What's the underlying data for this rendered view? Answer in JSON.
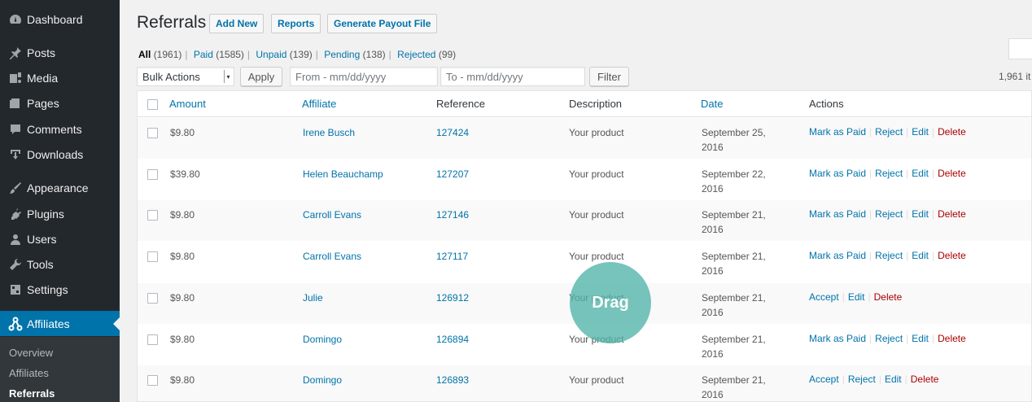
{
  "sidebar": {
    "items": [
      {
        "label": "Dashboard",
        "icon": "dashboard-icon"
      },
      {
        "label": "Posts",
        "icon": "pin-icon"
      },
      {
        "label": "Media",
        "icon": "media-icon"
      },
      {
        "label": "Pages",
        "icon": "pages-icon"
      },
      {
        "label": "Comments",
        "icon": "comments-icon"
      },
      {
        "label": "Downloads",
        "icon": "download-icon"
      },
      {
        "label": "Appearance",
        "icon": "brush-icon"
      },
      {
        "label": "Plugins",
        "icon": "plugin-icon"
      },
      {
        "label": "Users",
        "icon": "users-icon"
      },
      {
        "label": "Tools",
        "icon": "wrench-icon"
      },
      {
        "label": "Settings",
        "icon": "settings-icon"
      },
      {
        "label": "Affiliates",
        "icon": "affiliates-icon",
        "active": true
      }
    ],
    "submenu": [
      "Overview",
      "Affiliates",
      "Referrals"
    ]
  },
  "header": {
    "title": "Referrals",
    "buttons": [
      "Add New",
      "Reports",
      "Generate Payout File"
    ]
  },
  "views": [
    {
      "label": "All",
      "count": "(1961)"
    },
    {
      "label": "Paid",
      "count": "(1585)"
    },
    {
      "label": "Unpaid",
      "count": "(139)"
    },
    {
      "label": "Pending",
      "count": "(138)"
    },
    {
      "label": "Rejected",
      "count": "(99)"
    }
  ],
  "toolbar": {
    "bulk_actions": "Bulk Actions",
    "apply": "Apply",
    "from_placeholder": "From - mm/dd/yyyy",
    "to_placeholder": "To - mm/dd/yyyy",
    "filter": "Filter",
    "items_count": "1,961 it"
  },
  "table": {
    "columns": [
      "Amount",
      "Affiliate",
      "Reference",
      "Description",
      "Date",
      "Actions"
    ],
    "rows": [
      {
        "amount": "$9.80",
        "affiliate": "Irene Busch",
        "reference": "127424",
        "description": "Your product",
        "date1": "September 25,",
        "date2": "2016",
        "actions": [
          "Mark as Paid",
          "Reject",
          "Edit",
          "Delete"
        ]
      },
      {
        "amount": "$39.80",
        "affiliate": "Helen Beauchamp",
        "reference": "127207",
        "description": "Your product",
        "date1": "September 22,",
        "date2": "2016",
        "actions": [
          "Mark as Paid",
          "Reject",
          "Edit",
          "Delete"
        ]
      },
      {
        "amount": "$9.80",
        "affiliate": "Carroll Evans",
        "reference": "127146",
        "description": "Your product",
        "date1": "September 21,",
        "date2": "2016",
        "actions": [
          "Mark as Paid",
          "Reject",
          "Edit",
          "Delete"
        ]
      },
      {
        "amount": "$9.80",
        "affiliate": "Carroll Evans",
        "reference": "127117",
        "description": "Your product",
        "date1": "September 21,",
        "date2": "2016",
        "actions": [
          "Mark as Paid",
          "Reject",
          "Edit",
          "Delete"
        ]
      },
      {
        "amount": "$9.80",
        "affiliate": "Julie",
        "reference": "126912",
        "description": "Your product",
        "date1": "September 21,",
        "date2": "2016",
        "actions": [
          "Accept",
          "Edit",
          "Delete"
        ]
      },
      {
        "amount": "$9.80",
        "affiliate": "Domingo",
        "reference": "126894",
        "description": "Your product",
        "date1": "September 21,",
        "date2": "2016",
        "actions": [
          "Mark as Paid",
          "Reject",
          "Edit",
          "Delete"
        ]
      },
      {
        "amount": "$9.80",
        "affiliate": "Domingo",
        "reference": "126893",
        "description": "Your product",
        "date1": "September 21,",
        "date2": "2016",
        "actions": [
          "Accept",
          "Reject",
          "Edit",
          "Delete"
        ]
      }
    ]
  },
  "overlay": {
    "drag_label": "Drag"
  }
}
